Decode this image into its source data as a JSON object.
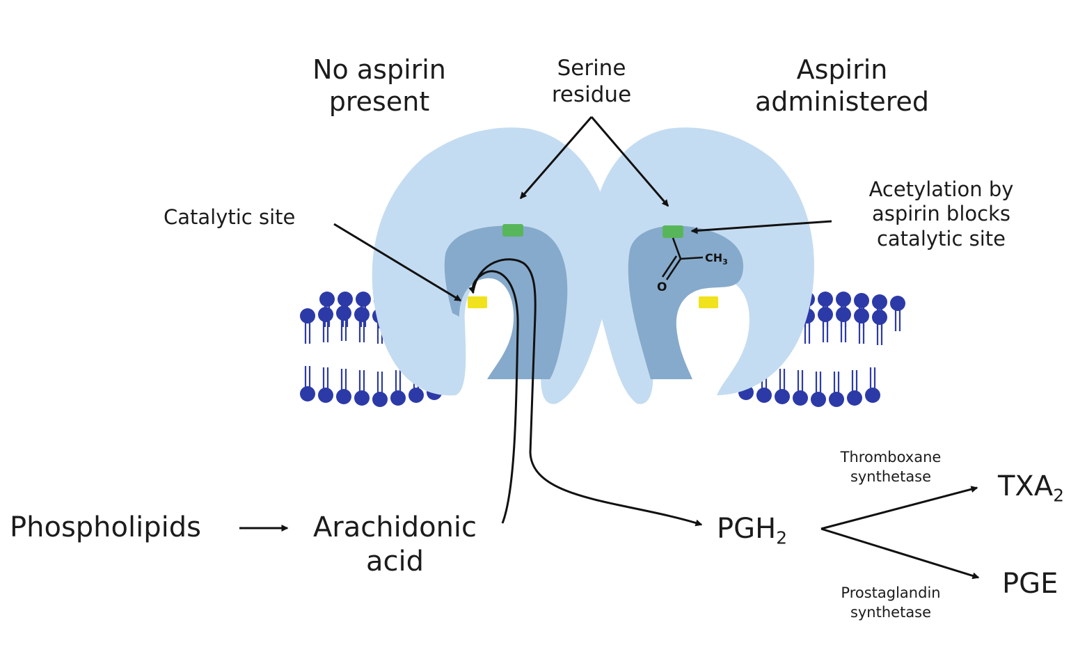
{
  "labels": {
    "no_aspirin": [
      "No aspirin",
      "present"
    ],
    "aspirin": [
      "Aspirin",
      "administered"
    ],
    "serine": [
      "Serine",
      "residue"
    ],
    "catalytic_site": "Catalytic site",
    "acetylation": [
      "Acetylation by",
      "aspirin blocks",
      "catalytic site"
    ],
    "ch3": "CH",
    "ch3_sub": "3",
    "oxygen": "O"
  },
  "pathway": {
    "phospholipids": "Phospholipids",
    "arachidonic": [
      "Arachidonic",
      "acid"
    ],
    "pgh2": "PGH",
    "pgh2_sub": "2",
    "thromboxane_synthetase": [
      "Thromboxane",
      "synthetase"
    ],
    "txa2": "TXA",
    "txa2_sub": "2",
    "prostaglandin_synthetase": [
      "Prostaglandin",
      "synthetase"
    ],
    "pge": "PGE"
  },
  "colors": {
    "enzyme_light": "#c4dcf1",
    "enzyme_cavity": "#86aacb",
    "lipid_head": "#2c3aa8",
    "serine_residue": "#58b65a",
    "catalytic_site": "#f0e21c",
    "arrows": "#111111"
  }
}
